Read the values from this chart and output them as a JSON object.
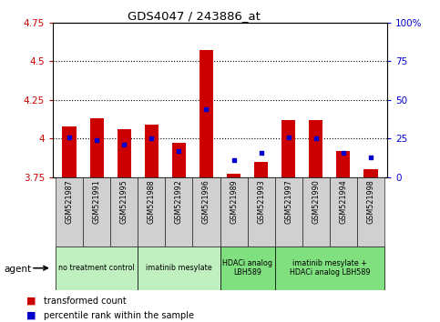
{
  "title": "GDS4047 / 243886_at",
  "samples": [
    "GSM521987",
    "GSM521991",
    "GSM521995",
    "GSM521988",
    "GSM521992",
    "GSM521996",
    "GSM521989",
    "GSM521993",
    "GSM521997",
    "GSM521990",
    "GSM521994",
    "GSM521998"
  ],
  "red_values": [
    4.08,
    4.13,
    4.06,
    4.09,
    3.97,
    4.57,
    3.77,
    3.85,
    4.12,
    4.12,
    3.92,
    3.8
  ],
  "blue_values": [
    26,
    24,
    21,
    25,
    17,
    44,
    11,
    16,
    26,
    25,
    16,
    13
  ],
  "ylim_left": [
    3.75,
    4.75
  ],
  "ylim_right": [
    0,
    100
  ],
  "yticks_left": [
    3.75,
    4.0,
    4.25,
    4.5,
    4.75
  ],
  "yticks_right": [
    0,
    25,
    50,
    75,
    100
  ],
  "ytick_labels_left": [
    "3.75",
    "4",
    "4.25",
    "4.5",
    "4.75"
  ],
  "ytick_labels_right": [
    "0",
    "25",
    "50",
    "75",
    "100%"
  ],
  "hlines": [
    4.0,
    4.25,
    4.5
  ],
  "group_defs": [
    {
      "label": "no treatment control",
      "indices": [
        0,
        1,
        2
      ],
      "color": "#c0f0c0"
    },
    {
      "label": "imatinib mesylate",
      "indices": [
        3,
        4,
        5
      ],
      "color": "#c0f0c0"
    },
    {
      "label": "HDACi analog\nLBH589",
      "indices": [
        6,
        7
      ],
      "color": "#80e080"
    },
    {
      "label": "imatinib mesylate +\nHDACi analog LBH589",
      "indices": [
        8,
        9,
        10,
        11
      ],
      "color": "#80e080"
    }
  ],
  "agent_label": "agent",
  "legend_red": "transformed count",
  "legend_blue": "percentile rank within the sample",
  "bar_width": 0.5,
  "bar_bottom": 3.75,
  "tick_color_left": "#cc0000",
  "tick_color_right": "#0000cc",
  "bar_color_red": "#cc0000",
  "bar_color_blue": "#0000cc"
}
